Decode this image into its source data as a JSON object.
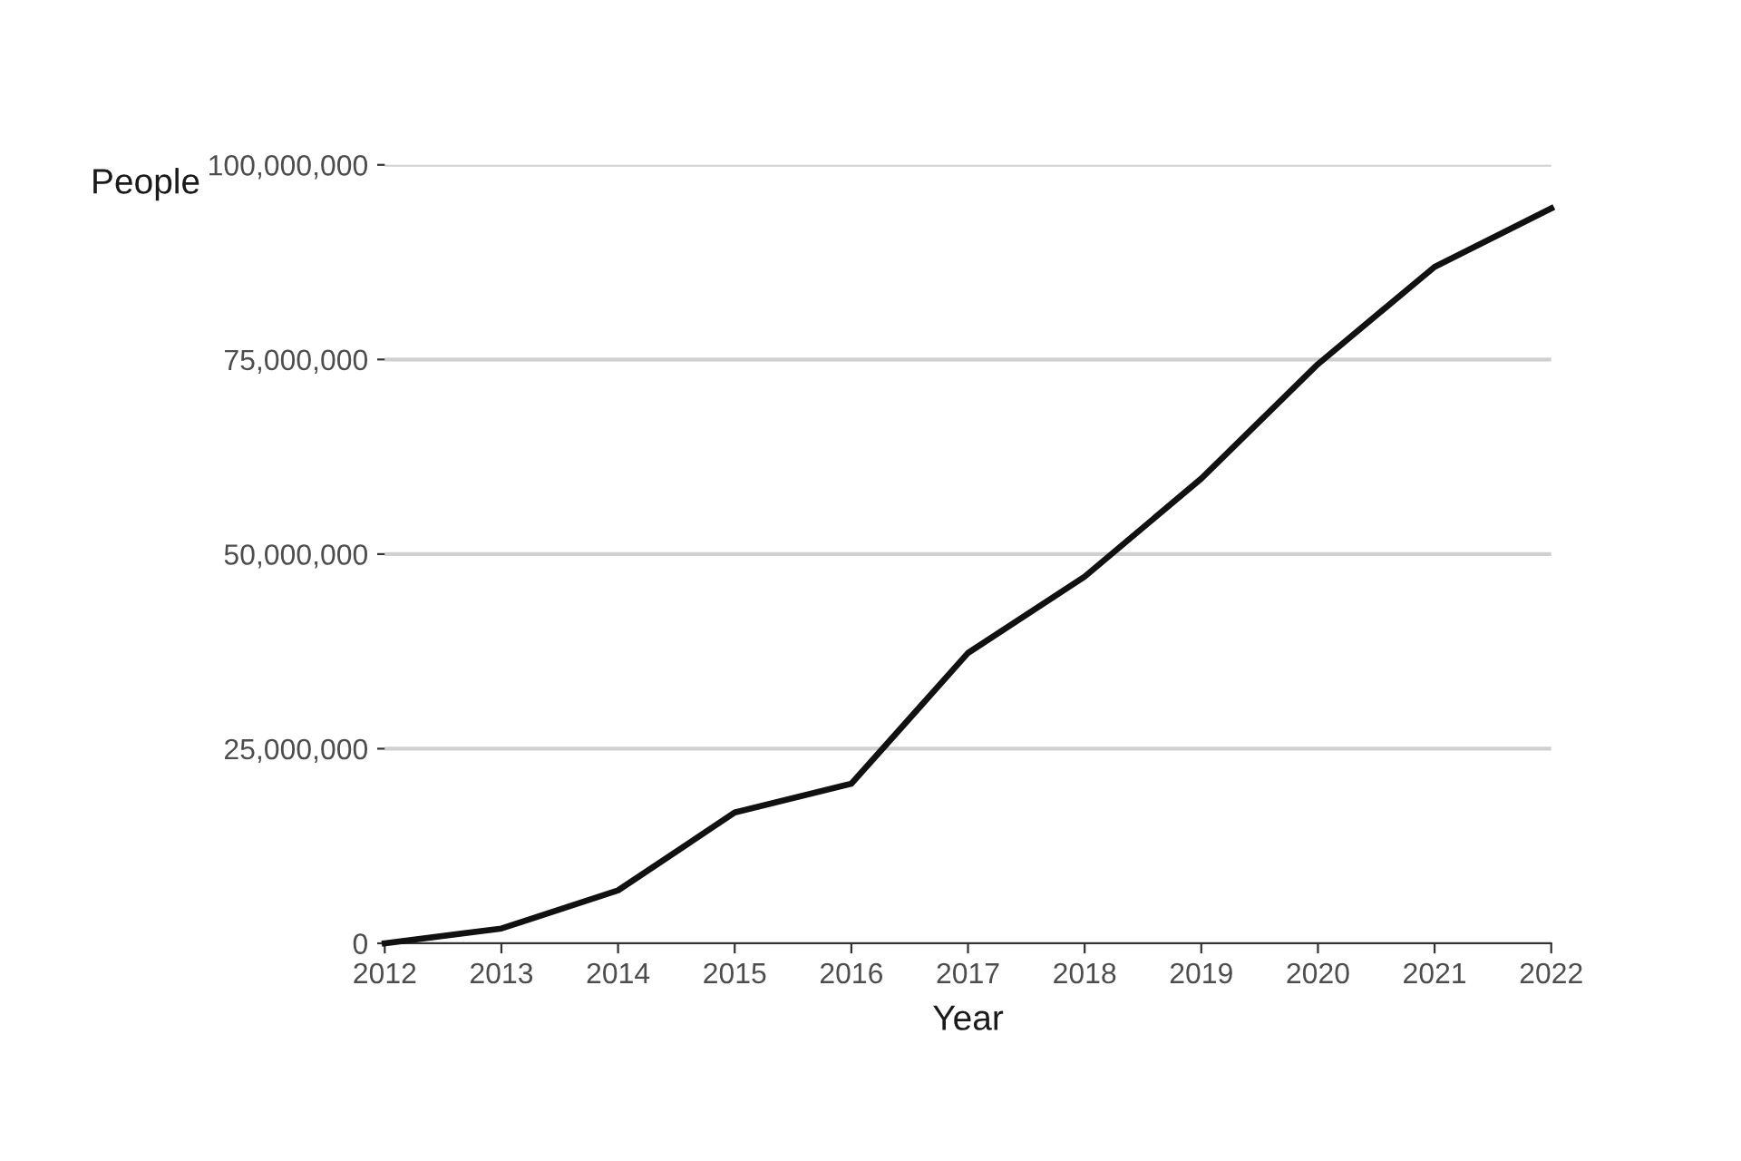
{
  "chart_data": {
    "type": "line",
    "xlabel": "Year",
    "ylabel": "People",
    "x": [
      2012,
      2013,
      2014,
      2015,
      2016,
      2017,
      2018,
      2019,
      2020,
      2021,
      2022
    ],
    "series": [
      {
        "color": "#111111",
        "values": [
          0,
          1900000,
          6800000,
          16800000,
          20500000,
          37300000,
          47100000,
          59700000,
          74400000,
          86900000,
          94400000
        ]
      }
    ],
    "xlim": [
      2012,
      2022
    ],
    "xticks": [
      2012,
      2013,
      2014,
      2015,
      2016,
      2017,
      2018,
      2019,
      2020,
      2021,
      2022
    ],
    "ylim": [
      0,
      100000000
    ],
    "yticks": [
      {
        "value": 0,
        "label": "0"
      },
      {
        "value": 25000000,
        "label": "25,000,000"
      },
      {
        "value": 50000000,
        "label": "50,000,000"
      },
      {
        "value": 75000000,
        "label": "75,000,000"
      },
      {
        "value": 100000000,
        "label": "100,000,000"
      }
    ],
    "grid": "y",
    "marker": "none",
    "line_style": "solid"
  }
}
